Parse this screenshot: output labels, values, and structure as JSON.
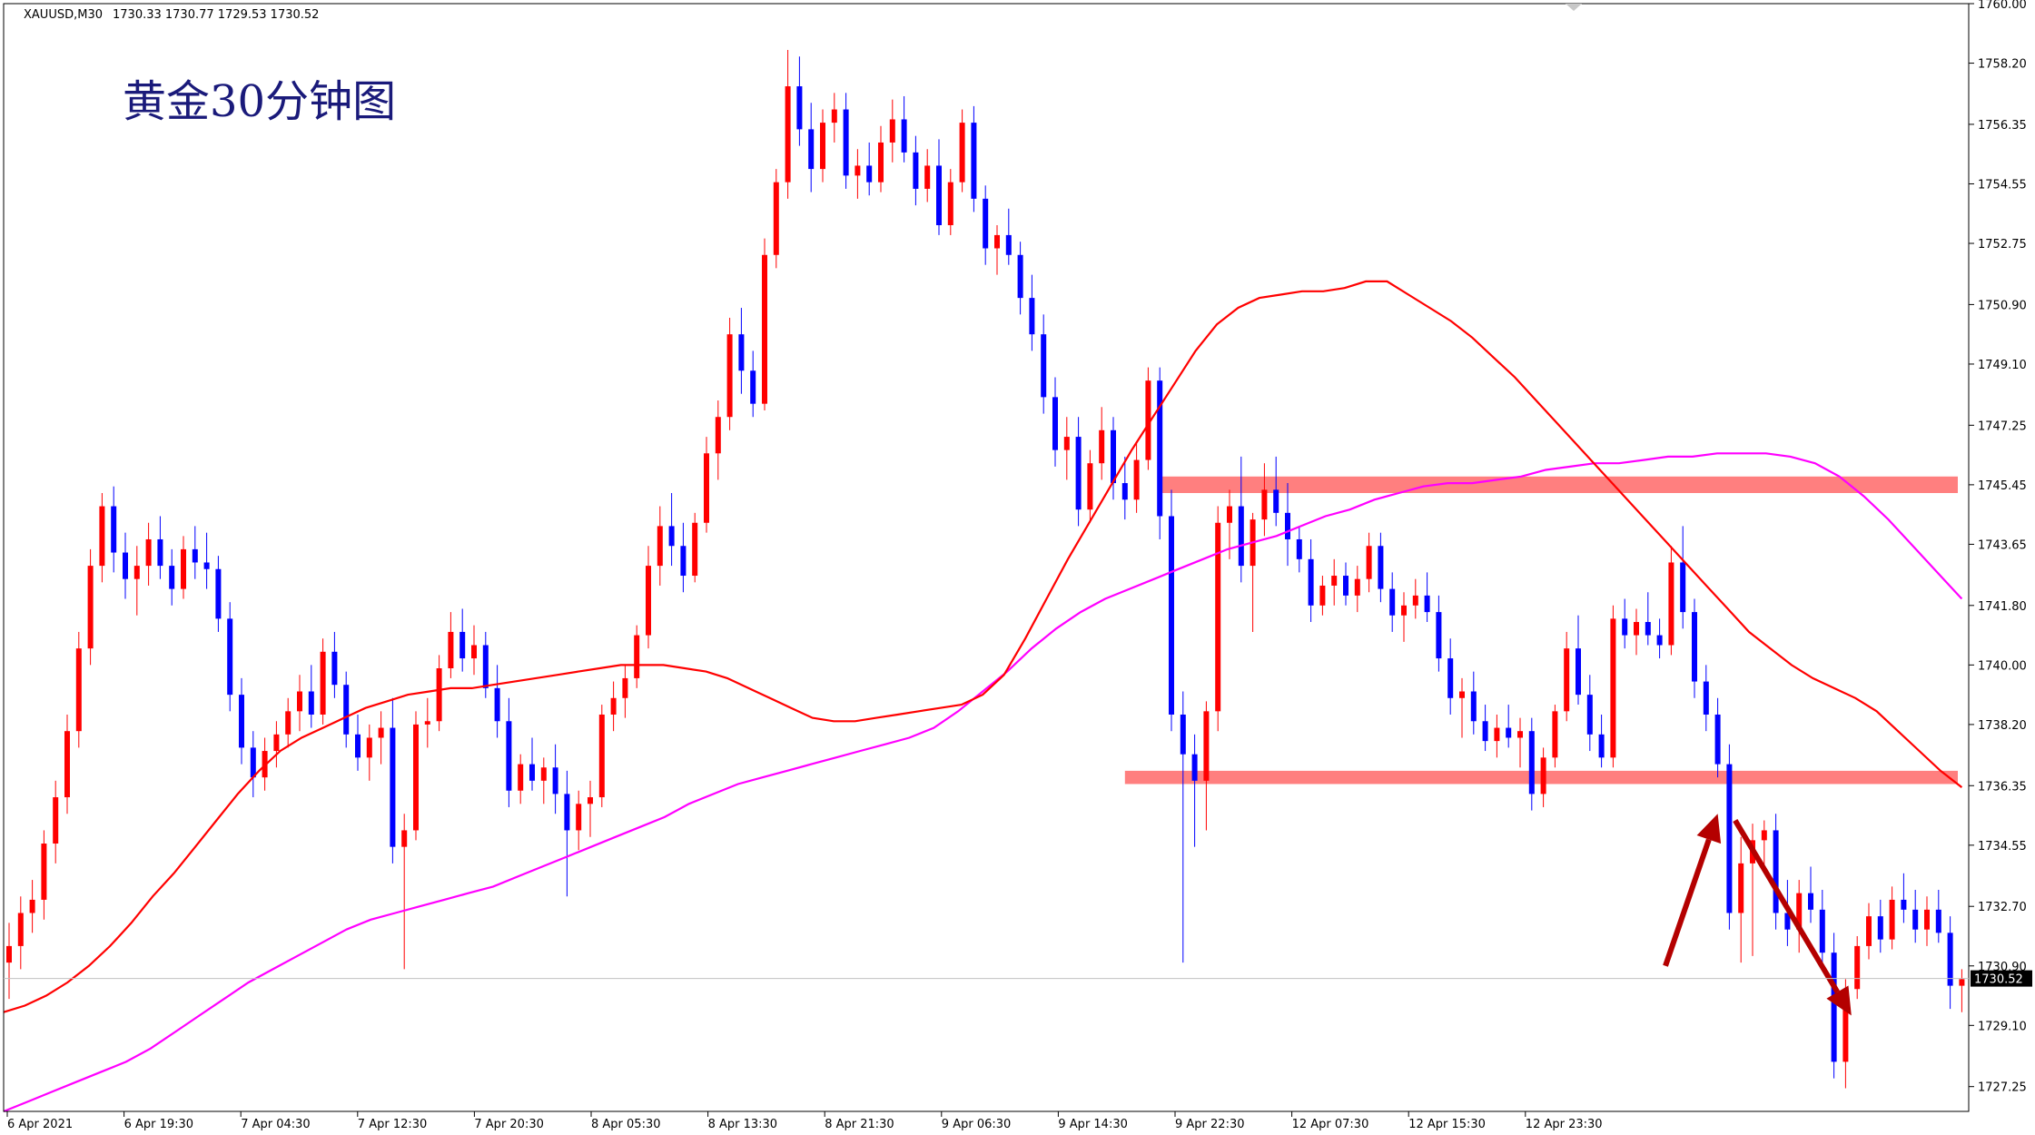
{
  "header": {
    "symbol": "XAUUSD,M30",
    "ohlc": "1730.33 1730.77 1729.53 1730.52"
  },
  "colors": {
    "bull": "#ff0000",
    "bear": "#0000ff",
    "ma_fast": "#ff0000",
    "ma_slow": "#ff00ff",
    "zone": "#ff7f7f",
    "arrow": "#b40000",
    "grid": "#c0c0c0",
    "price_label_bg": "#000000"
  },
  "chart_data": {
    "type": "candlestick",
    "title": "黄金30分钟图",
    "ylim": [
      1726.5,
      1760.0
    ],
    "y_ticks": [
      "1760.00",
      "1758.20",
      "1756.35",
      "1754.55",
      "1752.75",
      "1750.90",
      "1749.10",
      "1747.25",
      "1745.45",
      "1743.65",
      "1741.80",
      "1740.00",
      "1738.20",
      "1736.35",
      "1734.55",
      "1732.70",
      "1730.90",
      "1729.10",
      "1727.25"
    ],
    "x_ticks": [
      "6 Apr 2021",
      "6 Apr 19:30",
      "7 Apr 04:30",
      "7 Apr 12:30",
      "7 Apr 20:30",
      "8 Apr 05:30",
      "8 Apr 13:30",
      "8 Apr 21:30",
      "9 Apr 06:30",
      "9 Apr 14:30",
      "9 Apr 22:30",
      "12 Apr 07:30",
      "12 Apr 15:30",
      "12 Apr 23:30"
    ],
    "current_price": "1730.52",
    "candles": [
      [
        1731.0,
        1732.2,
        1729.9,
        1731.5
      ],
      [
        1731.5,
        1733.0,
        1730.8,
        1732.5
      ],
      [
        1732.5,
        1733.5,
        1731.9,
        1732.9
      ],
      [
        1732.9,
        1735.0,
        1732.3,
        1734.6
      ],
      [
        1734.6,
        1736.5,
        1734.0,
        1736.0
      ],
      [
        1736.0,
        1738.5,
        1735.5,
        1738.0
      ],
      [
        1738.0,
        1741.0,
        1737.5,
        1740.5
      ],
      [
        1740.5,
        1743.5,
        1740.0,
        1743.0
      ],
      [
        1743.0,
        1745.2,
        1742.5,
        1744.8
      ],
      [
        1744.8,
        1745.4,
        1742.8,
        1743.4
      ],
      [
        1743.4,
        1744.0,
        1742.0,
        1742.6
      ],
      [
        1742.6,
        1743.6,
        1741.5,
        1743.0
      ],
      [
        1743.0,
        1744.3,
        1742.4,
        1743.8
      ],
      [
        1743.8,
        1744.5,
        1742.6,
        1743.0
      ],
      [
        1743.0,
        1743.5,
        1741.8,
        1742.3
      ],
      [
        1742.3,
        1743.9,
        1742.0,
        1743.5
      ],
      [
        1743.5,
        1744.2,
        1742.6,
        1743.1
      ],
      [
        1743.1,
        1744.0,
        1742.3,
        1742.9
      ],
      [
        1742.9,
        1743.3,
        1741.0,
        1741.4
      ],
      [
        1741.4,
        1741.9,
        1738.6,
        1739.1
      ],
      [
        1739.1,
        1739.6,
        1737.0,
        1737.5
      ],
      [
        1737.5,
        1738.0,
        1736.0,
        1736.6
      ],
      [
        1736.6,
        1737.8,
        1736.2,
        1737.4
      ],
      [
        1737.4,
        1738.3,
        1736.9,
        1737.9
      ],
      [
        1737.9,
        1739.0,
        1737.5,
        1738.6
      ],
      [
        1738.6,
        1739.7,
        1738.0,
        1739.2
      ],
      [
        1739.2,
        1740.0,
        1738.1,
        1738.5
      ],
      [
        1738.5,
        1740.8,
        1738.2,
        1740.4
      ],
      [
        1740.4,
        1741.0,
        1739.0,
        1739.4
      ],
      [
        1739.4,
        1739.8,
        1737.5,
        1737.9
      ],
      [
        1737.9,
        1738.5,
        1736.8,
        1737.2
      ],
      [
        1737.2,
        1738.2,
        1736.5,
        1737.8
      ],
      [
        1737.8,
        1738.6,
        1737.0,
        1738.1
      ],
      [
        1738.1,
        1739.0,
        1734.0,
        1734.5
      ],
      [
        1734.5,
        1735.5,
        1730.8,
        1735.0
      ],
      [
        1735.0,
        1738.6,
        1734.7,
        1738.2
      ],
      [
        1738.2,
        1739.0,
        1737.5,
        1738.3
      ],
      [
        1738.3,
        1740.3,
        1738.0,
        1739.9
      ],
      [
        1739.9,
        1741.6,
        1739.6,
        1741.0
      ],
      [
        1741.0,
        1741.7,
        1739.8,
        1740.2
      ],
      [
        1740.2,
        1741.2,
        1739.7,
        1740.6
      ],
      [
        1740.6,
        1741.0,
        1739.0,
        1739.3
      ],
      [
        1739.3,
        1740.0,
        1737.8,
        1738.3
      ],
      [
        1738.3,
        1739.0,
        1735.7,
        1736.2
      ],
      [
        1736.2,
        1737.3,
        1735.8,
        1737.0
      ],
      [
        1737.0,
        1737.8,
        1736.2,
        1736.5
      ],
      [
        1736.5,
        1737.2,
        1735.8,
        1736.9
      ],
      [
        1736.9,
        1737.6,
        1735.5,
        1736.1
      ],
      [
        1736.1,
        1736.8,
        1733.0,
        1735.0
      ],
      [
        1735.0,
        1736.2,
        1734.4,
        1735.8
      ],
      [
        1735.8,
        1736.5,
        1734.8,
        1736.0
      ],
      [
        1736.0,
        1738.8,
        1735.7,
        1738.5
      ],
      [
        1738.5,
        1739.5,
        1738.0,
        1739.0
      ],
      [
        1739.0,
        1740.0,
        1738.4,
        1739.6
      ],
      [
        1739.6,
        1741.2,
        1739.3,
        1740.9
      ],
      [
        1740.9,
        1743.6,
        1740.5,
        1743.0
      ],
      [
        1743.0,
        1744.8,
        1742.4,
        1744.2
      ],
      [
        1744.2,
        1745.2,
        1743.0,
        1743.6
      ],
      [
        1743.6,
        1744.3,
        1742.2,
        1742.7
      ],
      [
        1742.7,
        1744.6,
        1742.5,
        1744.3
      ],
      [
        1744.3,
        1746.9,
        1744.0,
        1746.4
      ],
      [
        1746.4,
        1748.0,
        1745.6,
        1747.5
      ],
      [
        1747.5,
        1750.5,
        1747.1,
        1750.0
      ],
      [
        1750.0,
        1750.8,
        1748.2,
        1748.9
      ],
      [
        1748.9,
        1749.5,
        1747.5,
        1747.9
      ],
      [
        1747.9,
        1752.9,
        1747.7,
        1752.4
      ],
      [
        1752.4,
        1755.0,
        1752.0,
        1754.6
      ],
      [
        1754.6,
        1758.6,
        1754.1,
        1757.5
      ],
      [
        1757.5,
        1758.4,
        1755.7,
        1756.2
      ],
      [
        1756.2,
        1757.0,
        1754.3,
        1755.0
      ],
      [
        1755.0,
        1756.8,
        1754.6,
        1756.4
      ],
      [
        1756.4,
        1757.3,
        1755.8,
        1756.8
      ],
      [
        1756.8,
        1757.3,
        1754.4,
        1754.8
      ],
      [
        1754.8,
        1755.6,
        1754.1,
        1755.1
      ],
      [
        1755.1,
        1755.8,
        1754.2,
        1754.6
      ],
      [
        1754.6,
        1756.3,
        1754.3,
        1755.8
      ],
      [
        1755.8,
        1757.1,
        1755.2,
        1756.5
      ],
      [
        1756.5,
        1757.2,
        1755.2,
        1755.5
      ],
      [
        1755.5,
        1756.0,
        1753.9,
        1754.4
      ],
      [
        1754.4,
        1755.6,
        1754.0,
        1755.1
      ],
      [
        1755.1,
        1755.9,
        1753.0,
        1753.3
      ],
      [
        1753.3,
        1755.0,
        1753.0,
        1754.6
      ],
      [
        1754.6,
        1756.8,
        1754.3,
        1756.4
      ],
      [
        1756.4,
        1756.9,
        1753.7,
        1754.1
      ],
      [
        1754.1,
        1754.5,
        1752.1,
        1752.6
      ],
      [
        1752.6,
        1753.3,
        1751.8,
        1753.0
      ],
      [
        1753.0,
        1753.8,
        1752.1,
        1752.4
      ],
      [
        1752.4,
        1752.8,
        1750.6,
        1751.1
      ],
      [
        1751.1,
        1751.8,
        1749.5,
        1750.0
      ],
      [
        1750.0,
        1750.6,
        1747.6,
        1748.1
      ],
      [
        1748.1,
        1748.7,
        1746.0,
        1746.5
      ],
      [
        1746.5,
        1747.5,
        1745.6,
        1746.9
      ],
      [
        1746.9,
        1747.5,
        1744.2,
        1744.7
      ],
      [
        1744.7,
        1746.5,
        1744.3,
        1746.1
      ],
      [
        1746.1,
        1747.8,
        1745.6,
        1747.1
      ],
      [
        1747.1,
        1747.5,
        1745.0,
        1745.5
      ],
      [
        1745.5,
        1746.3,
        1744.4,
        1745.0
      ],
      [
        1745.0,
        1746.7,
        1744.6,
        1746.2
      ],
      [
        1746.2,
        1749.0,
        1745.9,
        1748.6
      ],
      [
        1748.6,
        1749.0,
        1743.8,
        1744.5
      ],
      [
        1744.5,
        1745.3,
        1738.0,
        1738.5
      ],
      [
        1738.5,
        1739.2,
        1731.0,
        1737.3
      ],
      [
        1737.3,
        1737.9,
        1734.5,
        1736.5
      ],
      [
        1736.5,
        1738.9,
        1735.0,
        1738.6
      ],
      [
        1738.6,
        1744.8,
        1738.0,
        1744.3
      ],
      [
        1744.3,
        1745.3,
        1743.2,
        1744.8
      ],
      [
        1744.8,
        1746.3,
        1742.5,
        1743.0
      ],
      [
        1743.0,
        1744.6,
        1741.0,
        1744.4
      ],
      [
        1744.4,
        1746.1,
        1743.9,
        1745.3
      ],
      [
        1745.3,
        1746.3,
        1744.2,
        1744.6
      ],
      [
        1744.6,
        1745.5,
        1743.0,
        1743.8
      ],
      [
        1743.8,
        1744.2,
        1742.8,
        1743.2
      ],
      [
        1743.2,
        1743.8,
        1741.3,
        1741.8
      ],
      [
        1741.8,
        1742.7,
        1741.5,
        1742.4
      ],
      [
        1742.4,
        1743.2,
        1741.8,
        1742.7
      ],
      [
        1742.7,
        1743.1,
        1741.8,
        1742.1
      ],
      [
        1742.1,
        1743.0,
        1741.6,
        1742.6
      ],
      [
        1742.6,
        1744.0,
        1742.2,
        1743.6
      ],
      [
        1743.6,
        1744.0,
        1741.9,
        1742.3
      ],
      [
        1742.3,
        1742.8,
        1741.0,
        1741.5
      ],
      [
        1741.5,
        1742.2,
        1740.7,
        1741.8
      ],
      [
        1741.8,
        1742.6,
        1741.4,
        1742.1
      ],
      [
        1742.1,
        1742.8,
        1741.3,
        1741.6
      ],
      [
        1741.6,
        1742.1,
        1739.8,
        1740.2
      ],
      [
        1740.2,
        1740.8,
        1738.5,
        1739.0
      ],
      [
        1739.0,
        1739.6,
        1737.8,
        1739.2
      ],
      [
        1739.2,
        1739.8,
        1737.9,
        1738.3
      ],
      [
        1738.3,
        1738.8,
        1737.4,
        1737.7
      ],
      [
        1737.7,
        1738.5,
        1737.2,
        1738.1
      ],
      [
        1738.1,
        1738.8,
        1737.5,
        1737.8
      ],
      [
        1737.8,
        1738.4,
        1736.9,
        1738.0
      ],
      [
        1738.0,
        1738.4,
        1735.6,
        1736.1
      ],
      [
        1736.1,
        1737.5,
        1735.7,
        1737.2
      ],
      [
        1737.2,
        1738.8,
        1736.9,
        1738.6
      ],
      [
        1738.6,
        1741.0,
        1738.3,
        1740.5
      ],
      [
        1740.5,
        1741.5,
        1738.8,
        1739.1
      ],
      [
        1739.1,
        1739.7,
        1737.4,
        1737.9
      ],
      [
        1737.9,
        1738.5,
        1736.9,
        1737.2
      ],
      [
        1737.2,
        1741.8,
        1736.9,
        1741.4
      ],
      [
        1741.4,
        1742.0,
        1740.5,
        1740.9
      ],
      [
        1740.9,
        1741.7,
        1740.3,
        1741.3
      ],
      [
        1741.3,
        1742.2,
        1740.6,
        1740.9
      ],
      [
        1740.9,
        1741.4,
        1740.2,
        1740.6
      ],
      [
        1740.6,
        1743.6,
        1740.3,
        1743.1
      ],
      [
        1743.1,
        1744.2,
        1741.1,
        1741.6
      ],
      [
        1741.6,
        1742.0,
        1739.0,
        1739.5
      ],
      [
        1739.5,
        1740.0,
        1738.0,
        1738.5
      ],
      [
        1738.5,
        1739.0,
        1736.6,
        1737.0
      ],
      [
        1737.0,
        1737.6,
        1732.0,
        1732.5
      ],
      [
        1732.5,
        1734.8,
        1731.0,
        1734.0
      ],
      [
        1734.0,
        1735.2,
        1731.2,
        1734.7
      ],
      [
        1734.7,
        1735.3,
        1733.9,
        1735.0
      ],
      [
        1735.0,
        1735.5,
        1732.0,
        1732.5
      ],
      [
        1732.5,
        1733.5,
        1731.5,
        1732.0
      ],
      [
        1732.0,
        1733.5,
        1731.3,
        1733.1
      ],
      [
        1733.1,
        1733.9,
        1732.2,
        1732.6
      ],
      [
        1732.6,
        1733.2,
        1731.0,
        1731.3
      ],
      [
        1731.3,
        1731.9,
        1727.5,
        1728.0
      ],
      [
        1728.0,
        1730.5,
        1727.2,
        1730.2
      ],
      [
        1730.2,
        1731.8,
        1729.9,
        1731.5
      ],
      [
        1731.5,
        1732.8,
        1731.1,
        1732.4
      ],
      [
        1732.4,
        1732.9,
        1731.3,
        1731.7
      ],
      [
        1731.7,
        1733.3,
        1731.4,
        1732.9
      ],
      [
        1732.9,
        1733.7,
        1732.2,
        1732.6
      ],
      [
        1732.6,
        1733.2,
        1731.6,
        1732.0
      ],
      [
        1732.0,
        1733.0,
        1731.5,
        1732.6
      ],
      [
        1732.6,
        1733.2,
        1731.6,
        1731.9
      ],
      [
        1731.9,
        1732.4,
        1729.6,
        1730.3
      ],
      [
        1730.3,
        1730.8,
        1729.5,
        1730.5
      ]
    ],
    "ma_fast": [
      1729.5,
      1729.7,
      1730.0,
      1730.4,
      1730.9,
      1731.5,
      1732.2,
      1733.0,
      1733.7,
      1734.5,
      1735.3,
      1736.1,
      1736.8,
      1737.4,
      1737.8,
      1738.1,
      1738.4,
      1738.7,
      1738.9,
      1739.1,
      1739.2,
      1739.3,
      1739.3,
      1739.4,
      1739.5,
      1739.6,
      1739.7,
      1739.8,
      1739.9,
      1740.0,
      1740.0,
      1740.0,
      1739.9,
      1739.8,
      1739.6,
      1739.3,
      1739.0,
      1738.7,
      1738.4,
      1738.3,
      1738.3,
      1738.4,
      1738.5,
      1738.6,
      1738.7,
      1738.8,
      1739.1,
      1739.7,
      1740.8,
      1742.0,
      1743.2,
      1744.3,
      1745.4,
      1746.5,
      1747.5,
      1748.5,
      1749.5,
      1750.3,
      1750.8,
      1751.1,
      1751.2,
      1751.3,
      1751.3,
      1751.4,
      1751.6,
      1751.6,
      1751.2,
      1750.8,
      1750.4,
      1749.9,
      1749.3,
      1748.7,
      1748.0,
      1747.3,
      1746.6,
      1745.9,
      1745.2,
      1744.5,
      1743.8,
      1743.1,
      1742.4,
      1741.7,
      1741.0,
      1740.5,
      1740.0,
      1739.6,
      1739.3,
      1739.0,
      1738.6,
      1738.0,
      1737.4,
      1736.8,
      1736.3
    ],
    "ma_slow": [
      1726.5,
      1726.8,
      1727.1,
      1727.4,
      1727.7,
      1728.0,
      1728.4,
      1728.9,
      1729.4,
      1729.9,
      1730.4,
      1730.8,
      1731.2,
      1731.6,
      1732.0,
      1732.3,
      1732.5,
      1732.7,
      1732.9,
      1733.1,
      1733.3,
      1733.6,
      1733.9,
      1734.2,
      1734.5,
      1734.8,
      1735.1,
      1735.4,
      1735.8,
      1736.1,
      1736.4,
      1736.6,
      1736.8,
      1737.0,
      1737.2,
      1737.4,
      1737.6,
      1737.8,
      1738.1,
      1738.6,
      1739.2,
      1739.8,
      1740.5,
      1741.1,
      1741.6,
      1742.0,
      1742.3,
      1742.6,
      1742.9,
      1743.2,
      1743.5,
      1743.7,
      1743.9,
      1744.2,
      1744.5,
      1744.7,
      1745.0,
      1745.2,
      1745.4,
      1745.5,
      1745.5,
      1745.6,
      1745.7,
      1745.9,
      1746.0,
      1746.1,
      1746.1,
      1746.2,
      1746.3,
      1746.3,
      1746.4,
      1746.4,
      1746.4,
      1746.3,
      1746.1,
      1745.7,
      1745.1,
      1744.4,
      1743.6,
      1742.8,
      1742.0
    ],
    "zones": [
      {
        "y1": 1745.2,
        "y2": 1745.7,
        "start": 99
      },
      {
        "y1": 1736.4,
        "y2": 1736.8,
        "start": 96
      }
    ],
    "arrows": [
      {
        "from": [
          142.5,
          1730.9
        ],
        "to": [
          147.0,
          1735.5
        ]
      },
      {
        "from": [
          148.5,
          1735.3
        ],
        "to": [
          158.5,
          1729.4
        ]
      }
    ]
  }
}
